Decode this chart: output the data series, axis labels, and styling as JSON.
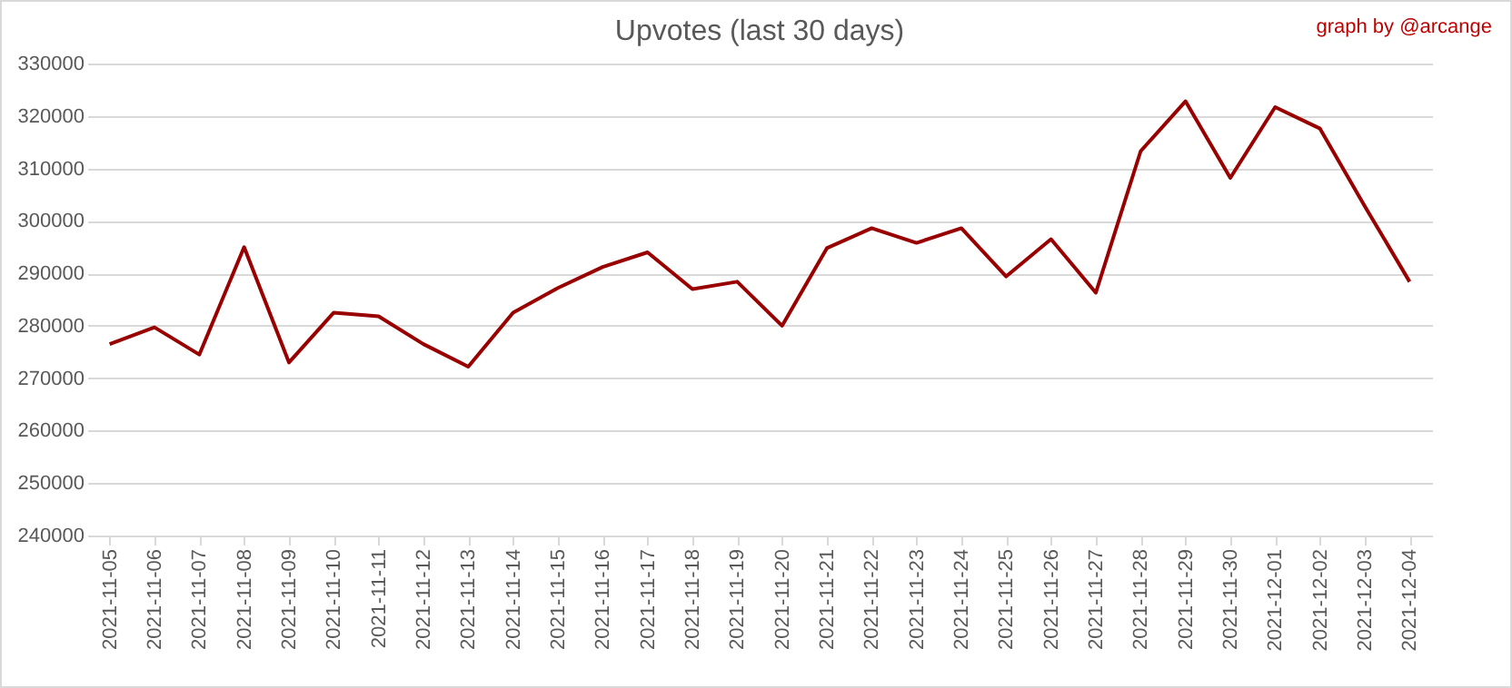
{
  "chart_data": {
    "type": "line",
    "title": "Upvotes (last 30 days)",
    "annotations": [
      "graph by @arcange"
    ],
    "categories": [
      "2021-11-05",
      "2021-11-06",
      "2021-11-07",
      "2021-11-08",
      "2021-11-09",
      "2021-11-10",
      "2021-11-11",
      "2021-11-12",
      "2021-11-13",
      "2021-11-14",
      "2021-11-15",
      "2021-11-16",
      "2021-11-17",
      "2021-11-18",
      "2021-11-19",
      "2021-11-20",
      "2021-11-21",
      "2021-11-22",
      "2021-11-23",
      "2021-11-24",
      "2021-11-25",
      "2021-11-26",
      "2021-11-27",
      "2021-11-28",
      "2021-11-29",
      "2021-11-30",
      "2021-12-01",
      "2021-12-02",
      "2021-12-03",
      "2021-12-04"
    ],
    "series": [
      {
        "color": "#990000",
        "values": [
          276500,
          279700,
          274500,
          295000,
          273000,
          282500,
          281800,
          276500,
          272200,
          282500,
          287200,
          291200,
          294000,
          287000,
          288400,
          280000,
          294800,
          298600,
          295800,
          298600,
          289400,
          296500,
          286300,
          313300,
          322800,
          308200,
          321700,
          317600,
          302800,
          288400
        ]
      }
    ],
    "ylim": [
      240000,
      330000
    ],
    "yticks": [
      240000,
      250000,
      260000,
      270000,
      280000,
      290000,
      300000,
      310000,
      320000,
      330000
    ],
    "grid": "y",
    "marker": "none",
    "line_style": "solid"
  }
}
